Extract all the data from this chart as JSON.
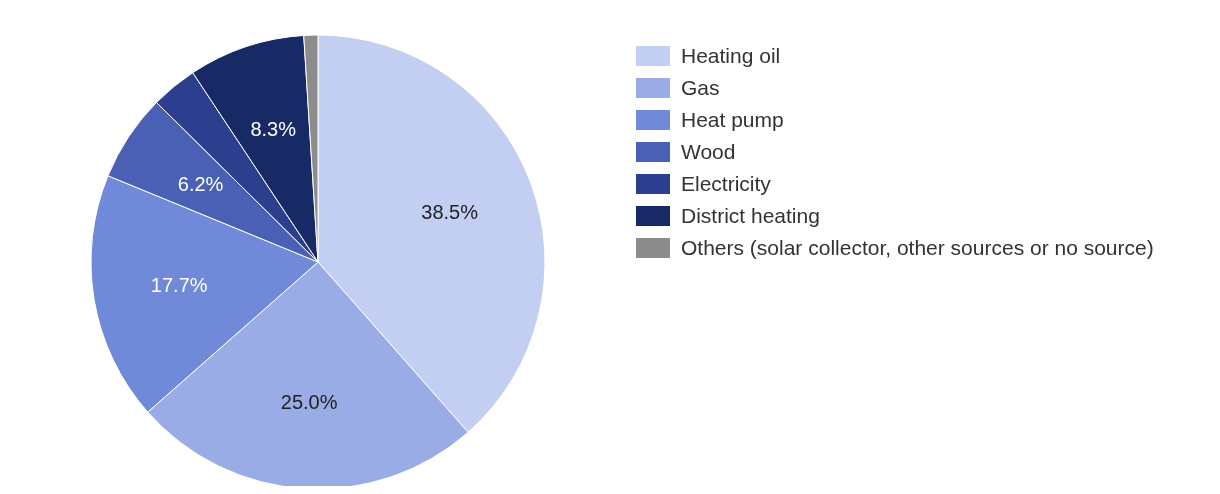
{
  "chart_data": {
    "type": "pie",
    "categories": [
      "Heating oil",
      "Gas",
      "Heat pump",
      "Wood",
      "Electricity",
      "District heating",
      "Others (solar collector, other sources or no source)"
    ],
    "values": [
      38.5,
      25.0,
      17.7,
      6.2,
      3.3,
      8.3,
      1.0
    ],
    "value_labels": [
      "38.5%",
      "25.0%",
      "17.7%",
      "6.2%",
      null,
      "8.3%",
      null
    ],
    "colors": [
      "#c3cff2",
      "#9aace5",
      "#7089d8",
      "#4a60b4",
      "#2c3f8f",
      "#172a66",
      "#8c8c8c"
    ],
    "legend": "right"
  }
}
